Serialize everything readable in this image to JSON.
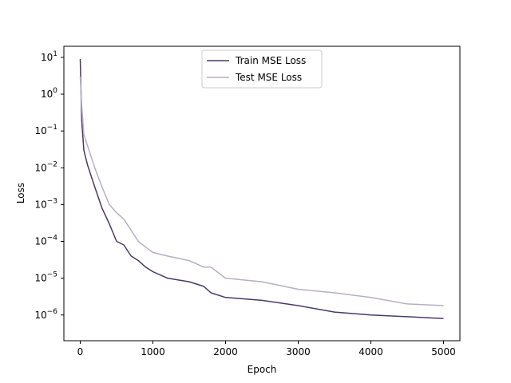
{
  "chart_data": {
    "type": "line",
    "title": "",
    "xlabel": "Epoch",
    "ylabel": "Loss",
    "yscale": "log",
    "xlim": [
      -225,
      5225
    ],
    "ylim": [
      2e-07,
      20
    ],
    "xticks": [
      0,
      1000,
      2000,
      3000,
      4000,
      5000
    ],
    "xtick_labels": [
      "0",
      "1000",
      "2000",
      "3000",
      "4000",
      "5000"
    ],
    "yticks": [
      1e-06,
      1e-05,
      0.0001,
      0.001,
      0.01,
      0.1,
      1,
      10
    ],
    "ytick_labels": [
      {
        "base": "10",
        "exp": "−6"
      },
      {
        "base": "10",
        "exp": "−5"
      },
      {
        "base": "10",
        "exp": "−4"
      },
      {
        "base": "10",
        "exp": "−3"
      },
      {
        "base": "10",
        "exp": "−2"
      },
      {
        "base": "10",
        "exp": "−1"
      },
      {
        "base": "10",
        "exp": "0"
      },
      {
        "base": "10",
        "exp": "1"
      }
    ],
    "grid": false,
    "legend_position": "upper center",
    "series": [
      {
        "name": "Train MSE Loss",
        "color": "#4b3868",
        "x": [
          0,
          20,
          50,
          100,
          150,
          200,
          300,
          400,
          500,
          600,
          700,
          800,
          900,
          1000,
          1200,
          1500,
          1700,
          1800,
          2000,
          2500,
          3000,
          3500,
          4000,
          4500,
          5000
        ],
        "y": [
          9,
          0.2,
          0.03,
          0.012,
          0.006,
          0.003,
          0.0008,
          0.0003,
          0.0001,
          8e-05,
          4e-05,
          3e-05,
          2e-05,
          1.5e-05,
          1e-05,
          8e-06,
          6e-06,
          4e-06,
          3e-06,
          2.5e-06,
          1.8e-06,
          1.2e-06,
          1e-06,
          9e-07,
          8e-07
        ]
      },
      {
        "name": "Test MSE Loss",
        "color": "#b7aec4",
        "x": [
          0,
          20,
          50,
          100,
          150,
          200,
          300,
          400,
          500,
          600,
          700,
          800,
          900,
          1000,
          1200,
          1500,
          1700,
          1800,
          2000,
          2500,
          3000,
          3500,
          4000,
          4500,
          5000
        ],
        "y": [
          3,
          0.5,
          0.08,
          0.04,
          0.02,
          0.01,
          0.003,
          0.001,
          0.0006,
          0.0004,
          0.0002,
          0.0001,
          7e-05,
          5e-05,
          4e-05,
          3e-05,
          2e-05,
          2e-05,
          1e-05,
          8e-06,
          5e-06,
          4e-06,
          3e-06,
          2e-06,
          1.8e-06
        ]
      }
    ]
  }
}
